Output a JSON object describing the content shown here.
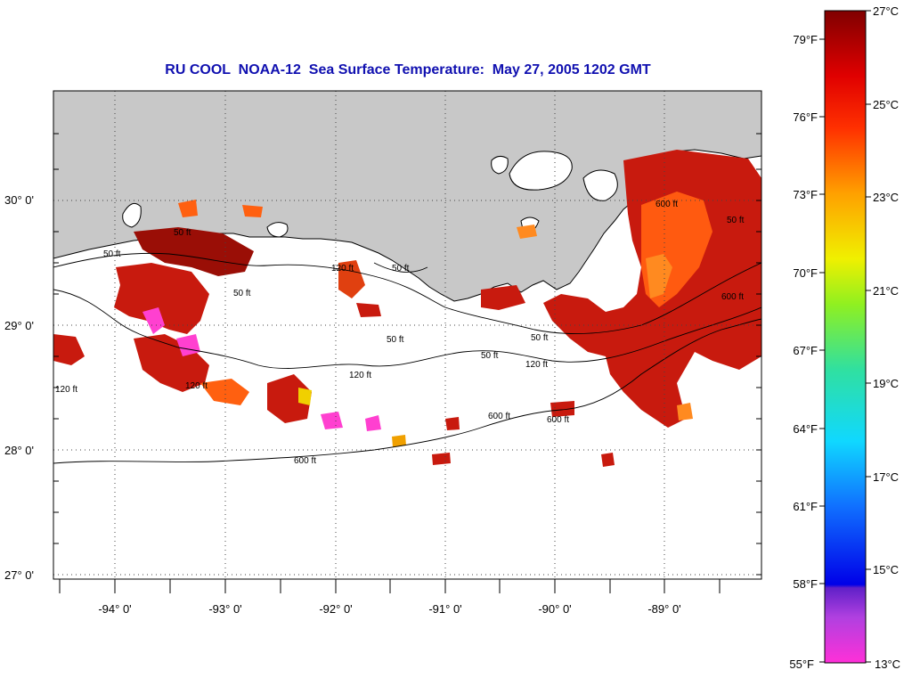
{
  "title": "RU COOL  NOAA-12  Sea Surface Temperature:  May 27, 2005 1202 GMT",
  "latitude_labels": [
    "30° 0'",
    "29° 0'",
    "28° 0'",
    "27° 0'"
  ],
  "longitude_labels": [
    "-94° 0'",
    "-93° 0'",
    "-92° 0'",
    "-91° 0'",
    "-90° 0'",
    "-89° 0'"
  ],
  "contour_labels": [
    "50 ft",
    "50 ft",
    "120 ft",
    "50 ft",
    "50 ft",
    "120 ft",
    "50 ft",
    "120 ft",
    "120 ft",
    "50 ft",
    "120 ft",
    "50 ft",
    "600 ft",
    "600 ft",
    "600 ft",
    "600 ft",
    "50 ft",
    "600 ft"
  ],
  "colorbar": {
    "fahrenheit_labels": [
      "79°F",
      "76°F",
      "73°F",
      "70°F",
      "67°F",
      "64°F",
      "61°F",
      "58°F",
      "55°F"
    ],
    "celsius_labels": [
      "27°C",
      "25°C",
      "23°C",
      "21°C",
      "19°C",
      "17°C",
      "15°C",
      "13°C"
    ]
  },
  "colors": {
    "title": "#1010b0",
    "land": "#c8c8c8",
    "ocean": "#ffffff",
    "sst_warm": "#c81a0e",
    "sst_hot": "#9a0e06"
  }
}
